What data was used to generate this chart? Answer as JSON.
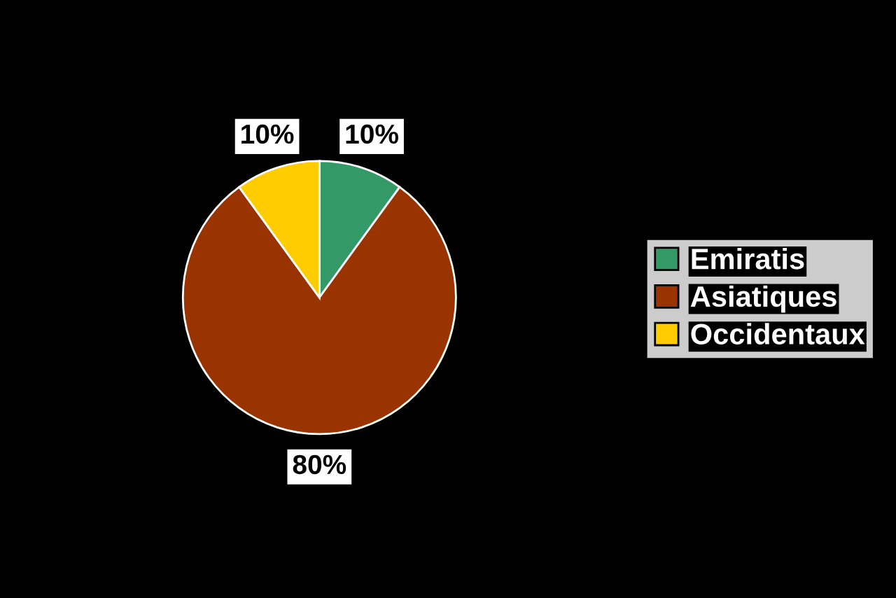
{
  "chart_data": {
    "type": "pie",
    "categories": [
      "Emiratis",
      "Asiatiques",
      "Occidentaux"
    ],
    "values": [
      10,
      80,
      10
    ],
    "colors": [
      "#339966",
      "#993300",
      "#ffcc00"
    ],
    "value_labels": [
      "10%",
      "80%",
      "10%"
    ],
    "legend": "right"
  }
}
